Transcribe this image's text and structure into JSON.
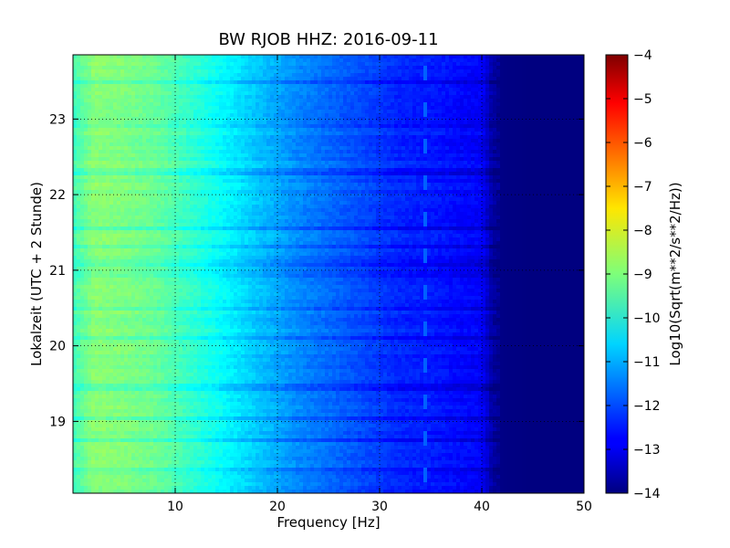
{
  "chart_data": {
    "type": "heatmap",
    "title": "BW RJOB HHZ: 2016-09-11",
    "xlabel": "Frequency [Hz]",
    "ylabel": "Lokalzeit (UTC + 2 Stunde)",
    "xlim": [
      0,
      50
    ],
    "ylim": [
      23.85,
      18.05
    ],
    "y_axis_inverted": true,
    "x_ticks": [
      10,
      20,
      30,
      40,
      50
    ],
    "y_ticks": [
      19,
      20,
      21,
      22,
      23
    ],
    "grid": true,
    "colormap": "jet",
    "colorbar": {
      "label": "Log10(Sqrt(m**2/s**2/Hz))",
      "range": [
        -14,
        -4
      ],
      "ticks": [
        -4,
        -5,
        -6,
        -7,
        -8,
        -9,
        -10,
        -11,
        -12,
        -13,
        -14
      ]
    },
    "profile": {
      "frequency_hz": [
        0,
        2,
        5,
        8,
        10,
        12,
        15,
        18,
        20,
        22,
        25,
        28,
        30,
        32,
        35,
        38,
        40,
        41,
        42,
        45,
        50
      ],
      "level_log10": [
        -9.6,
        -8.9,
        -9.0,
        -9.2,
        -9.5,
        -9.8,
        -10.3,
        -10.8,
        -11.1,
        -11.4,
        -11.7,
        -12.0,
        -12.2,
        -12.4,
        -12.5,
        -12.7,
        -12.8,
        -13.6,
        -13.95,
        -14,
        -14
      ]
    },
    "annotations": [
      {
        "feature": "narrow spectral line",
        "frequency_hz": 34.5,
        "level_log10": -11.8
      },
      {
        "feature": "quiet hours (darker stripes)",
        "hours": [
          18.35,
          18.75,
          19.05,
          19.45,
          20.1,
          20.5,
          20.95,
          21.1,
          21.3,
          21.55,
          22.3,
          22.9,
          23.5
        ]
      }
    ]
  }
}
